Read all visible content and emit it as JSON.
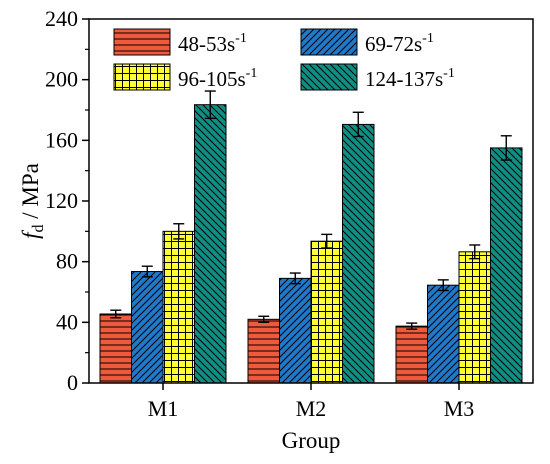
{
  "chart_data": {
    "type": "bar",
    "title": "",
    "xlabel": "Group",
    "ylabel": {
      "symbol": "f",
      "subscript": "d",
      "unit": " / MPa"
    },
    "ylim": [
      0,
      240
    ],
    "yticks": [
      0,
      40,
      80,
      120,
      160,
      200,
      240
    ],
    "categories": [
      "M1",
      "M2",
      "M3"
    ],
    "legend_position": "top-inside",
    "series": [
      {
        "name": "48-53s",
        "sup": "-1",
        "values": [
          45.5,
          42,
          37.5
        ],
        "errors": [
          2.5,
          2,
          2
        ],
        "color": "#f05a3c",
        "pattern": "hlines"
      },
      {
        "name": "69-72s",
        "sup": "-1",
        "values": [
          73.5,
          69,
          64.5
        ],
        "errors": [
          3.5,
          3.5,
          3.5
        ],
        "color": "#1f78c8",
        "pattern": "diag-up"
      },
      {
        "name": "96-105s",
        "sup": "-1",
        "values": [
          100,
          93.5,
          86.5
        ],
        "errors": [
          5,
          4.5,
          4.5
        ],
        "color": "#ffff33",
        "pattern": "grid"
      },
      {
        "name": "124-137s",
        "sup": "-1",
        "values": [
          183.5,
          170.5,
          155
        ],
        "errors": [
          9,
          8,
          8
        ],
        "color": "#0f8f84",
        "pattern": "diag-down"
      }
    ]
  }
}
